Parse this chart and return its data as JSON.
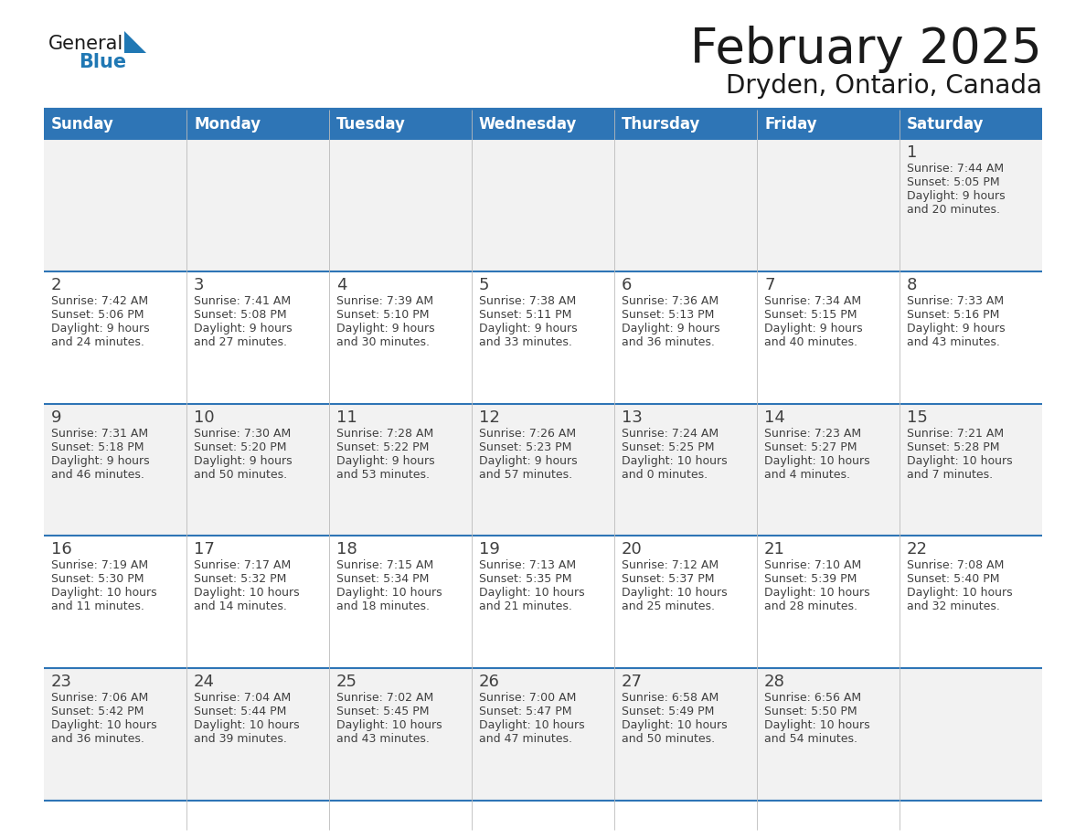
{
  "title": "February 2025",
  "subtitle": "Dryden, Ontario, Canada",
  "header_bg": "#2E75B6",
  "header_text_color": "#FFFFFF",
  "day_names": [
    "Sunday",
    "Monday",
    "Tuesday",
    "Wednesday",
    "Thursday",
    "Friday",
    "Saturday"
  ],
  "alt_row_bg": "#F2F2F2",
  "white_bg": "#FFFFFF",
  "border_color": "#2E75B6",
  "text_color": "#404040",
  "logo_general_color": "#1a1a1a",
  "logo_blue_color": "#2078B4",
  "calendar": [
    [
      null,
      null,
      null,
      null,
      null,
      null,
      1
    ],
    [
      2,
      3,
      4,
      5,
      6,
      7,
      8
    ],
    [
      9,
      10,
      11,
      12,
      13,
      14,
      15
    ],
    [
      16,
      17,
      18,
      19,
      20,
      21,
      22
    ],
    [
      23,
      24,
      25,
      26,
      27,
      28,
      null
    ]
  ],
  "day_data": {
    "1": {
      "sunrise": "7:44 AM",
      "sunset": "5:05 PM",
      "daylight": "9 hours and 20 minutes."
    },
    "2": {
      "sunrise": "7:42 AM",
      "sunset": "5:06 PM",
      "daylight": "9 hours and 24 minutes."
    },
    "3": {
      "sunrise": "7:41 AM",
      "sunset": "5:08 PM",
      "daylight": "9 hours and 27 minutes."
    },
    "4": {
      "sunrise": "7:39 AM",
      "sunset": "5:10 PM",
      "daylight": "9 hours and 30 minutes."
    },
    "5": {
      "sunrise": "7:38 AM",
      "sunset": "5:11 PM",
      "daylight": "9 hours and 33 minutes."
    },
    "6": {
      "sunrise": "7:36 AM",
      "sunset": "5:13 PM",
      "daylight": "9 hours and 36 minutes."
    },
    "7": {
      "sunrise": "7:34 AM",
      "sunset": "5:15 PM",
      "daylight": "9 hours and 40 minutes."
    },
    "8": {
      "sunrise": "7:33 AM",
      "sunset": "5:16 PM",
      "daylight": "9 hours and 43 minutes."
    },
    "9": {
      "sunrise": "7:31 AM",
      "sunset": "5:18 PM",
      "daylight": "9 hours and 46 minutes."
    },
    "10": {
      "sunrise": "7:30 AM",
      "sunset": "5:20 PM",
      "daylight": "9 hours and 50 minutes."
    },
    "11": {
      "sunrise": "7:28 AM",
      "sunset": "5:22 PM",
      "daylight": "9 hours and 53 minutes."
    },
    "12": {
      "sunrise": "7:26 AM",
      "sunset": "5:23 PM",
      "daylight": "9 hours and 57 minutes."
    },
    "13": {
      "sunrise": "7:24 AM",
      "sunset": "5:25 PM",
      "daylight": "10 hours and 0 minutes."
    },
    "14": {
      "sunrise": "7:23 AM",
      "sunset": "5:27 PM",
      "daylight": "10 hours and 4 minutes."
    },
    "15": {
      "sunrise": "7:21 AM",
      "sunset": "5:28 PM",
      "daylight": "10 hours and 7 minutes."
    },
    "16": {
      "sunrise": "7:19 AM",
      "sunset": "5:30 PM",
      "daylight": "10 hours and 11 minutes."
    },
    "17": {
      "sunrise": "7:17 AM",
      "sunset": "5:32 PM",
      "daylight": "10 hours and 14 minutes."
    },
    "18": {
      "sunrise": "7:15 AM",
      "sunset": "5:34 PM",
      "daylight": "10 hours and 18 minutes."
    },
    "19": {
      "sunrise": "7:13 AM",
      "sunset": "5:35 PM",
      "daylight": "10 hours and 21 minutes."
    },
    "20": {
      "sunrise": "7:12 AM",
      "sunset": "5:37 PM",
      "daylight": "10 hours and 25 minutes."
    },
    "21": {
      "sunrise": "7:10 AM",
      "sunset": "5:39 PM",
      "daylight": "10 hours and 28 minutes."
    },
    "22": {
      "sunrise": "7:08 AM",
      "sunset": "5:40 PM",
      "daylight": "10 hours and 32 minutes."
    },
    "23": {
      "sunrise": "7:06 AM",
      "sunset": "5:42 PM",
      "daylight": "10 hours and 36 minutes."
    },
    "24": {
      "sunrise": "7:04 AM",
      "sunset": "5:44 PM",
      "daylight": "10 hours and 39 minutes."
    },
    "25": {
      "sunrise": "7:02 AM",
      "sunset": "5:45 PM",
      "daylight": "10 hours and 43 minutes."
    },
    "26": {
      "sunrise": "7:00 AM",
      "sunset": "5:47 PM",
      "daylight": "10 hours and 47 minutes."
    },
    "27": {
      "sunrise": "6:58 AM",
      "sunset": "5:49 PM",
      "daylight": "10 hours and 50 minutes."
    },
    "28": {
      "sunrise": "6:56 AM",
      "sunset": "5:50 PM",
      "daylight": "10 hours and 54 minutes."
    }
  },
  "fig_width": 11.88,
  "fig_height": 9.18,
  "dpi": 100
}
